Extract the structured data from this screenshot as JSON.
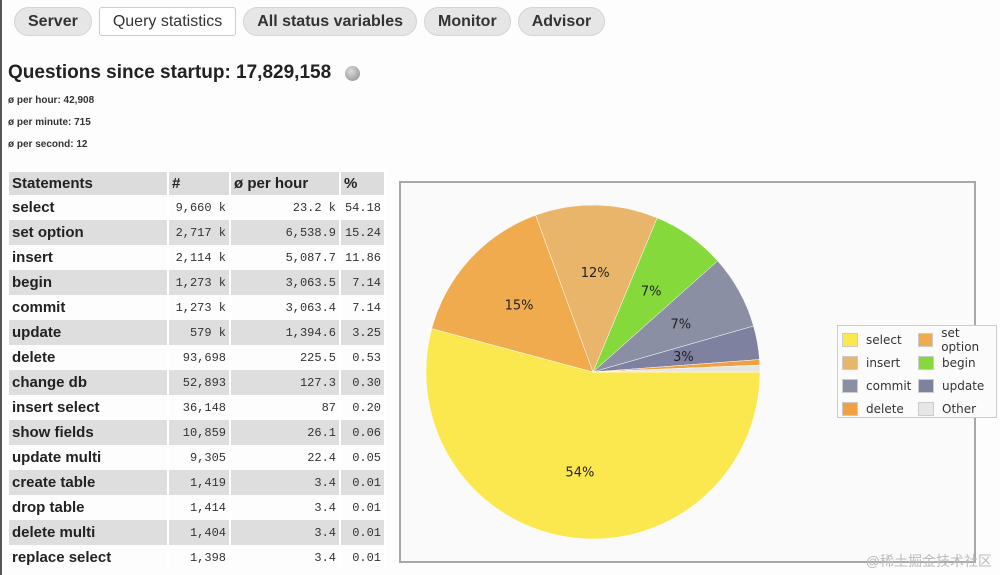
{
  "tabs": [
    {
      "label": "Server"
    },
    {
      "label": "Query statistics",
      "active": true
    },
    {
      "label": "All status variables"
    },
    {
      "label": "Monitor"
    },
    {
      "label": "Advisor"
    }
  ],
  "heading": "Questions since startup: 17,829,158",
  "rates": {
    "per_hour": "ø per hour: 42,908",
    "per_minute": "ø per minute: 715",
    "per_second": "ø per second: 12"
  },
  "table": {
    "headers": [
      "Statements",
      "#",
      "ø per hour",
      "%"
    ],
    "rows": [
      [
        "select",
        "9,660 k",
        "23.2 k",
        "54.18"
      ],
      [
        "set option",
        "2,717 k",
        "6,538.9",
        "15.24"
      ],
      [
        "insert",
        "2,114 k",
        "5,087.7",
        "11.86"
      ],
      [
        "begin",
        "1,273 k",
        "3,063.5",
        "7.14"
      ],
      [
        "commit",
        "1,273 k",
        "3,063.4",
        "7.14"
      ],
      [
        "update",
        "579 k",
        "1,394.6",
        "3.25"
      ],
      [
        "delete",
        "93,698",
        "225.5",
        "0.53"
      ],
      [
        "change db",
        "52,893",
        "127.3",
        "0.30"
      ],
      [
        "insert select",
        "36,148",
        "87",
        "0.20"
      ],
      [
        "show fields",
        "10,859",
        "26.1",
        "0.06"
      ],
      [
        "update multi",
        "9,305",
        "22.4",
        "0.05"
      ],
      [
        "create table",
        "1,419",
        "3.4",
        "0.01"
      ],
      [
        "drop table",
        "1,414",
        "3.4",
        "0.01"
      ],
      [
        "delete multi",
        "1,404",
        "3.4",
        "0.01"
      ],
      [
        "replace select",
        "1,398",
        "3.4",
        "0.01"
      ]
    ]
  },
  "chart_data": {
    "type": "pie",
    "slices": [
      {
        "name": "select",
        "value": 54.18,
        "label": "54%",
        "color": "#fbe74e"
      },
      {
        "name": "set option",
        "value": 15.24,
        "label": "15%",
        "color": "#f0ab4f"
      },
      {
        "name": "insert",
        "value": 11.86,
        "label": "12%",
        "color": "#e8b56a"
      },
      {
        "name": "begin",
        "value": 7.14,
        "label": "7%",
        "color": "#86d93a"
      },
      {
        "name": "commit",
        "value": 7.14,
        "label": "7%",
        "color": "#8b8fa3"
      },
      {
        "name": "update",
        "value": 3.25,
        "label": "3%",
        "color": "#7e82a0"
      },
      {
        "name": "delete",
        "value": 0.53,
        "label": "",
        "color": "#f0a040"
      },
      {
        "name": "Other",
        "value": 0.66,
        "label": "",
        "color": "#e6e6e6"
      }
    ],
    "legend": "right"
  },
  "watermark": "@稀土掘金技术社区"
}
